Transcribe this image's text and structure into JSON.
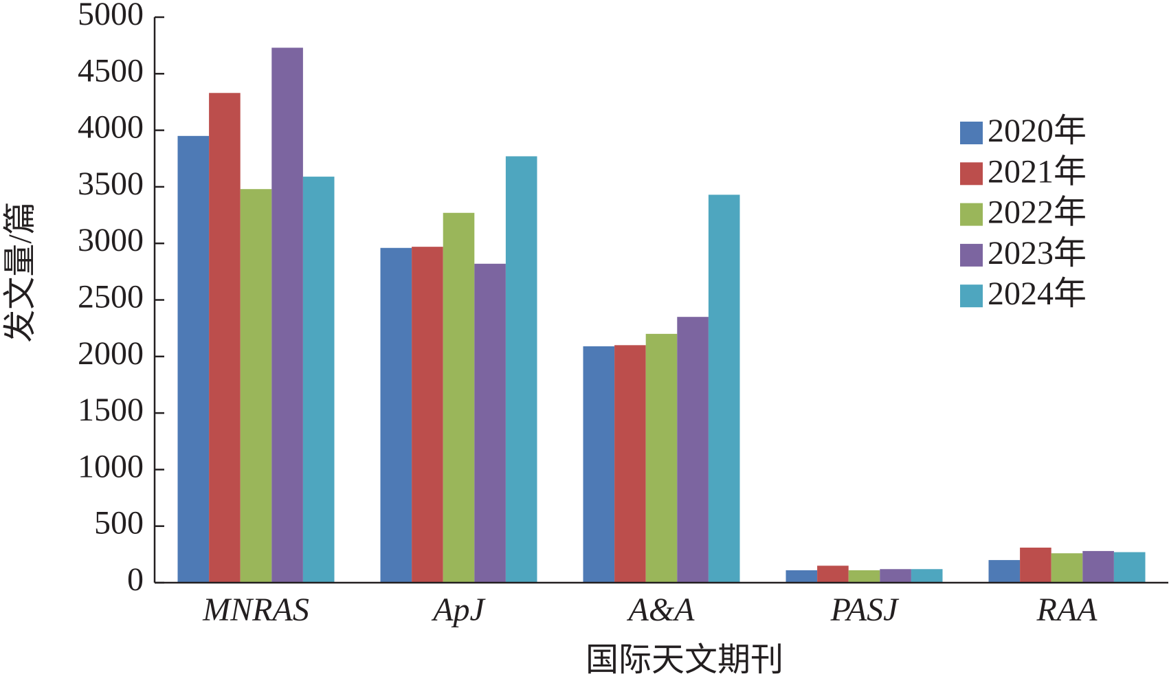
{
  "chart_data": {
    "type": "bar",
    "x_label": "国际天文期刊",
    "y_label": "发文量/篇",
    "categories": [
      "MNRAS",
      "ApJ",
      "A&A",
      "PASJ",
      "RAA"
    ],
    "series": [
      {
        "name": "2020年",
        "color": "#4e7ab5",
        "values": [
          3950,
          2960,
          2090,
          110,
          200
        ]
      },
      {
        "name": "2021年",
        "color": "#bc4e4c",
        "values": [
          4330,
          2970,
          2100,
          150,
          310
        ]
      },
      {
        "name": "2022年",
        "color": "#9ab65a",
        "values": [
          3480,
          3270,
          2200,
          110,
          260
        ]
      },
      {
        "name": "2023年",
        "color": "#7c65a0",
        "values": [
          4730,
          2820,
          2350,
          120,
          280
        ]
      },
      {
        "name": "2024年",
        "color": "#4ea6bf",
        "values": [
          3590,
          3770,
          3430,
          120,
          270
        ]
      }
    ],
    "ylim": [
      0,
      5000
    ],
    "yticks": [
      0,
      500,
      1000,
      1500,
      2000,
      2500,
      3000,
      3500,
      4000,
      4500,
      5000
    ],
    "legend": "right"
  }
}
